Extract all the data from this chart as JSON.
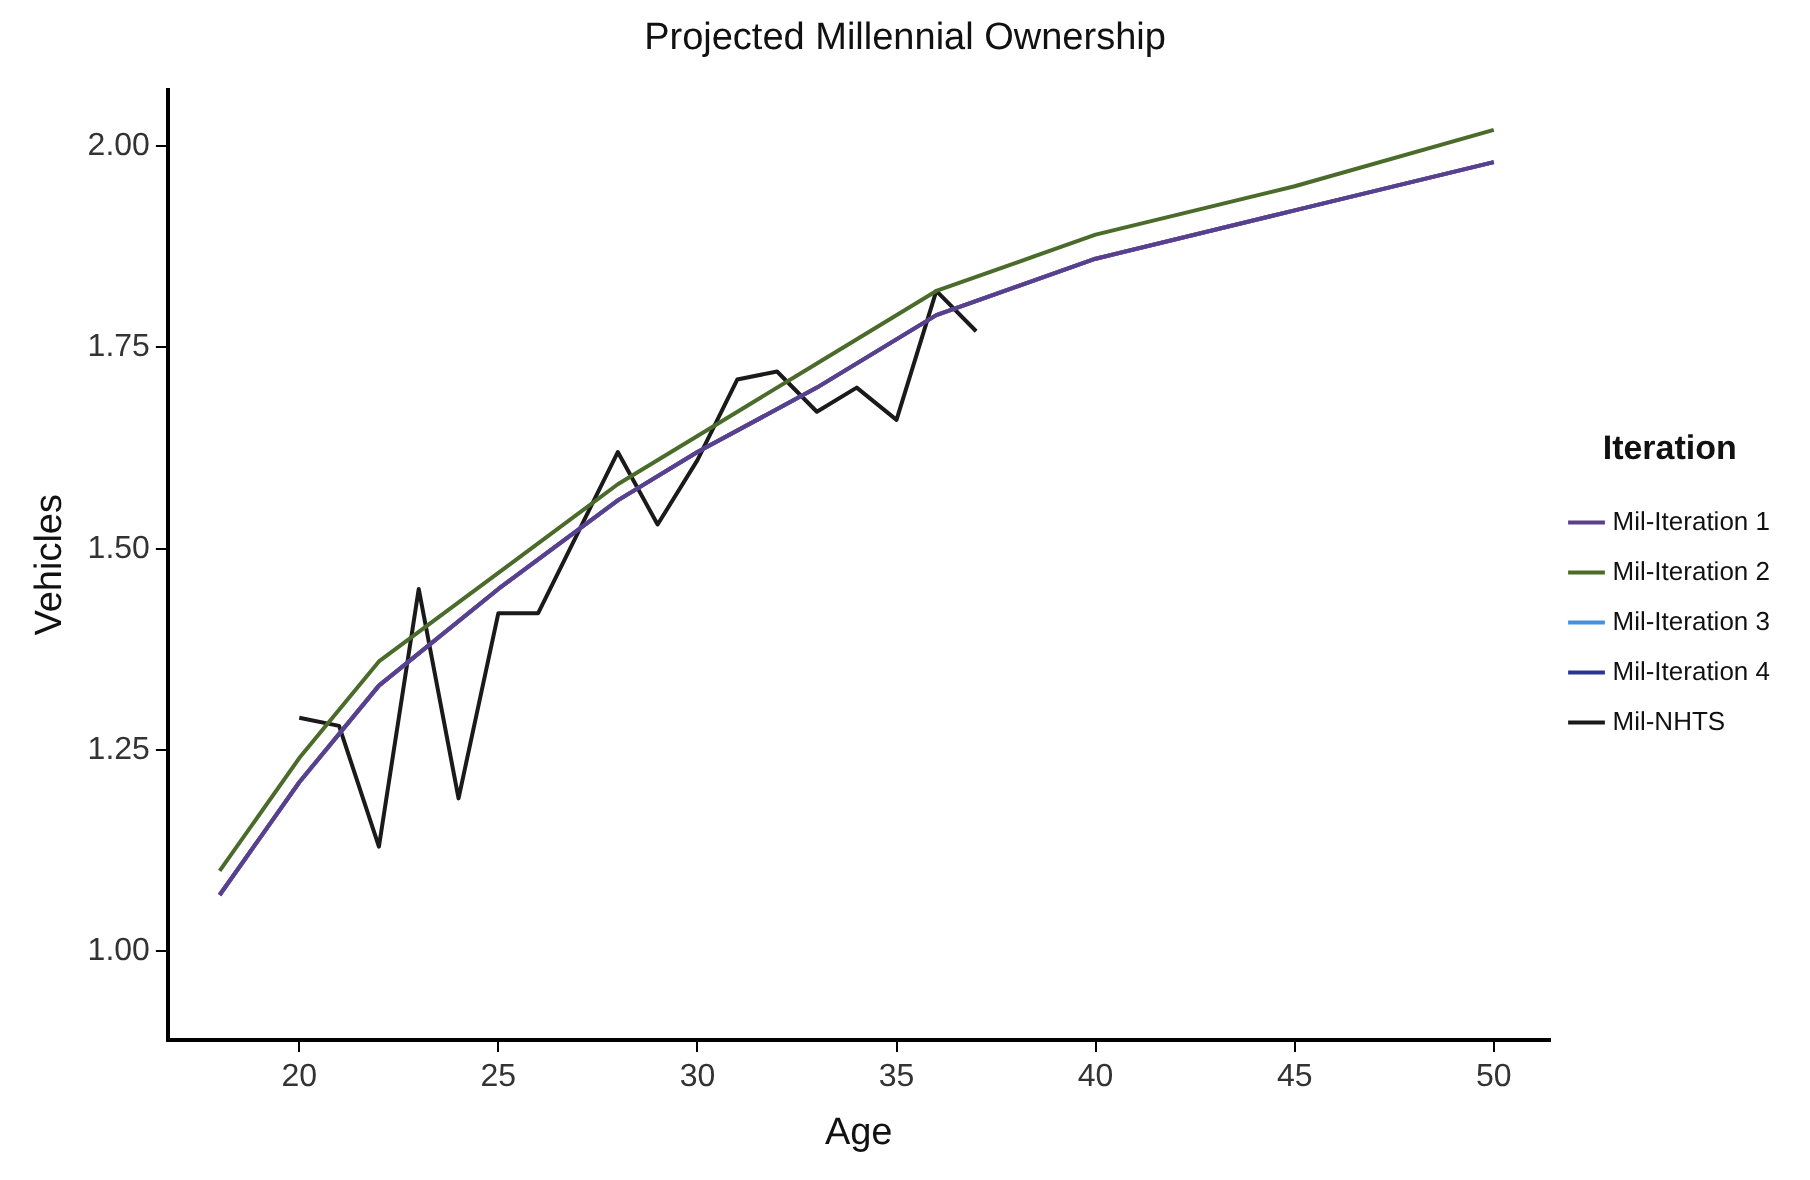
{
  "chart_data": {
    "type": "line",
    "title": "Projected Millennial Ownership",
    "xlabel": "Age",
    "ylabel": "Vehicles",
    "legend_title": "Iteration",
    "legend": "right",
    "grid": false,
    "marker": "none",
    "line_style": "solid",
    "xlim": [
      16.7,
      51.4
    ],
    "xticks": [
      20,
      25,
      30,
      35,
      40,
      45,
      50
    ],
    "ylim": [
      0.89,
      2.07
    ],
    "yticks": [
      {
        "value": 1,
        "label": "1.00"
      },
      {
        "value": 1.25,
        "label": "1.25"
      },
      {
        "value": 1.5,
        "label": "1.50"
      },
      {
        "value": 1.75,
        "label": "1.75"
      },
      {
        "value": 2,
        "label": "2.00"
      }
    ],
    "series": [
      {
        "name": "Mil-Iteration 1",
        "color": "#5b3f8c",
        "x": [
          18,
          20,
          22,
          25,
          28,
          30,
          33,
          36,
          40,
          45,
          50
        ],
        "values": [
          1.07,
          1.21,
          1.33,
          1.45,
          1.56,
          1.62,
          1.7,
          1.79,
          1.86,
          1.92,
          1.98
        ]
      },
      {
        "name": "Mil-Iteration 2",
        "color": "#4a6b2a",
        "x": [
          18,
          20,
          22,
          25,
          28,
          30,
          33,
          36,
          40,
          45,
          50
        ],
        "values": [
          1.1,
          1.24,
          1.36,
          1.47,
          1.58,
          1.64,
          1.73,
          1.82,
          1.89,
          1.95,
          2.02
        ]
      },
      {
        "name": "Mil-Iteration 3",
        "color": "#4a90d9",
        "x": [
          18,
          20,
          22,
          25,
          28,
          30,
          33,
          36,
          40,
          45,
          50
        ],
        "values": [
          1.07,
          1.21,
          1.33,
          1.45,
          1.56,
          1.62,
          1.7,
          1.79,
          1.86,
          1.92,
          1.98
        ]
      },
      {
        "name": "Mil-Iteration 4",
        "color": "#283593",
        "x": [
          18,
          20,
          22,
          25,
          28,
          30,
          33,
          36,
          40,
          45,
          50
        ],
        "values": [
          1.07,
          1.21,
          1.33,
          1.45,
          1.56,
          1.62,
          1.7,
          1.79,
          1.86,
          1.92,
          1.98
        ]
      },
      {
        "name": "Mil-NHTS",
        "color": "#1a1a1a",
        "x": [
          20,
          21,
          22,
          23,
          24,
          25,
          26,
          27,
          28,
          29,
          30,
          31,
          32,
          33,
          34,
          35,
          36,
          37
        ],
        "values": [
          1.29,
          1.28,
          1.13,
          1.45,
          1.19,
          1.42,
          1.42,
          1.52,
          1.62,
          1.53,
          1.61,
          1.71,
          1.72,
          1.67,
          1.7,
          1.66,
          1.82,
          1.77
        ]
      }
    ]
  }
}
